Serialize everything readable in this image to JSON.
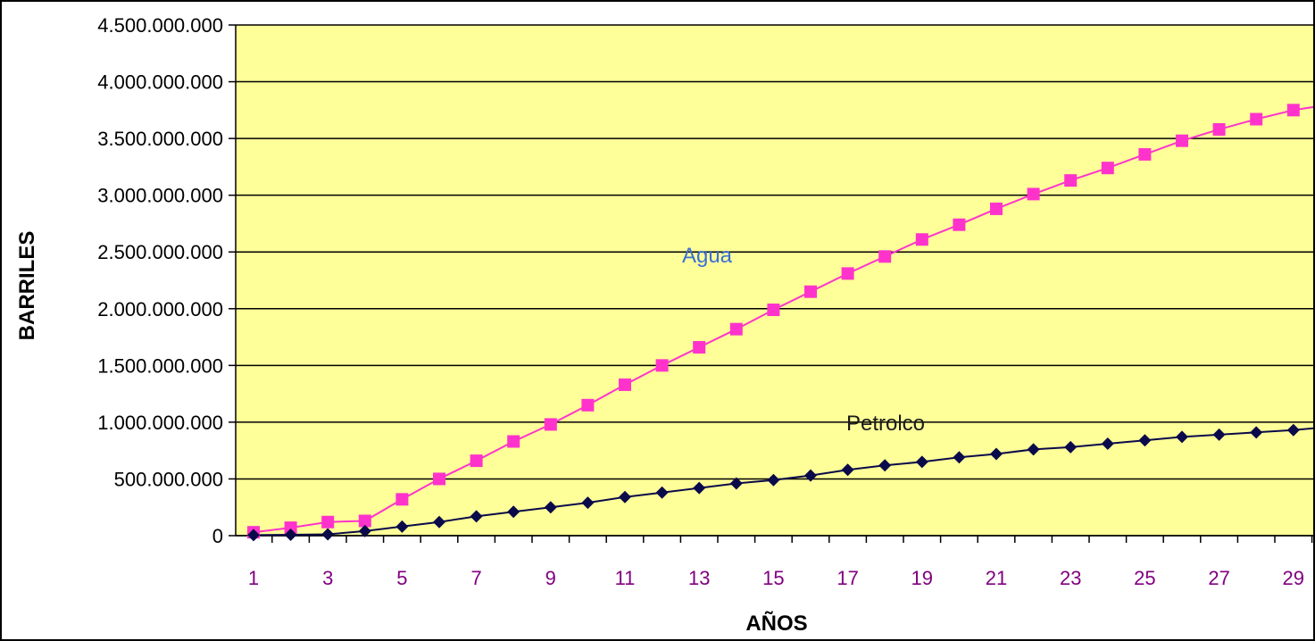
{
  "chart_data": {
    "type": "line",
    "title": "",
    "xlabel": "AÑOS",
    "ylabel": "BARRILES",
    "x": [
      1,
      2,
      3,
      4,
      5,
      6,
      7,
      8,
      9,
      10,
      11,
      12,
      13,
      14,
      15,
      16,
      17,
      18,
      19,
      20,
      21,
      22,
      23,
      24,
      25,
      26,
      27,
      28,
      29,
      30
    ],
    "x_tick_labels": [
      "1",
      "3",
      "5",
      "7",
      "9",
      "11",
      "13",
      "15",
      "17",
      "19",
      "21",
      "23",
      "25",
      "27",
      "29"
    ],
    "y_tick_labels": [
      "0",
      "500.000.000",
      "1.000.000.000",
      "1.500.000.000",
      "2.000.000.000",
      "2.500.000.000",
      "3.000.000.000",
      "3.500.000.000",
      "4.000.000.000",
      "4.500.000.000"
    ],
    "ylim": [
      0,
      4500000000
    ],
    "grid": true,
    "legend": "none",
    "series": [
      {
        "name": "Agua",
        "color": "#ff33cc",
        "label_color": "#3a6fd8",
        "marker": "square",
        "values": [
          30000000,
          70000000,
          120000000,
          130000000,
          320000000,
          500000000,
          660000000,
          830000000,
          980000000,
          1150000000,
          1330000000,
          1500000000,
          1660000000,
          1820000000,
          1990000000,
          2150000000,
          2310000000,
          2460000000,
          2610000000,
          2740000000,
          2880000000,
          3010000000,
          3130000000,
          3240000000,
          3360000000,
          3480000000,
          3580000000,
          3670000000,
          3750000000,
          3800000000
        ]
      },
      {
        "name": "Petroleo",
        "color": "#0a0a4a",
        "label_color": "#1a1a1a",
        "marker": "diamond",
        "values": [
          5000000,
          8000000,
          12000000,
          40000000,
          80000000,
          120000000,
          170000000,
          210000000,
          250000000,
          290000000,
          340000000,
          380000000,
          420000000,
          460000000,
          490000000,
          530000000,
          580000000,
          620000000,
          650000000,
          690000000,
          720000000,
          760000000,
          780000000,
          810000000,
          840000000,
          870000000,
          890000000,
          910000000,
          930000000,
          960000000
        ]
      }
    ],
    "series_labels": [
      "Agua",
      "Petrolco"
    ],
    "colors": {
      "plot_background": "#ffff99",
      "page_background": "#ffffff",
      "gridline": "#000000",
      "y_tick_text": "#000000",
      "x_tick_text": "#800080"
    }
  }
}
